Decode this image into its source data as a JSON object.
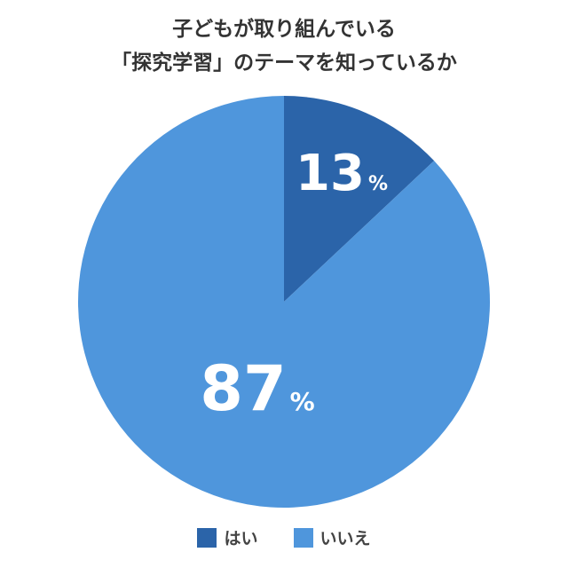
{
  "chart_data": {
    "type": "pie",
    "title_lines": [
      "子どもが取り組んでいる",
      "「探究学習」のテーマを知っているか"
    ],
    "categories": [
      "はい",
      "いいえ"
    ],
    "values": [
      13,
      87
    ],
    "unit": "%",
    "colors": [
      "#2b64a9",
      "#4f96dc"
    ],
    "legend": "bottom"
  }
}
